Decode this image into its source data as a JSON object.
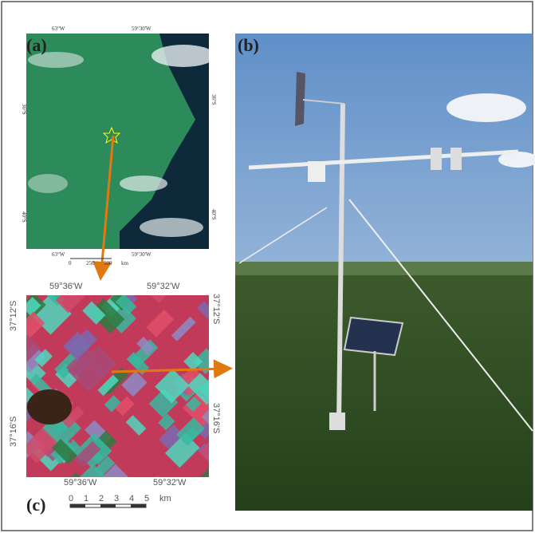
{
  "panels": {
    "a": {
      "label": "(a)",
      "top_ticks": [
        "63°W",
        "59°30'W"
      ],
      "bottom_ticks": [
        "63°W",
        "59°30'W"
      ],
      "left_ticks": [
        "36°S",
        "40°S"
      ],
      "right_ticks": [
        "36°S",
        "40°S"
      ],
      "scale": [
        "0",
        "250",
        "500",
        "km"
      ]
    },
    "b": {
      "label": "(b)"
    },
    "c": {
      "label": "(c)",
      "top_ticks": [
        "59°36'W",
        "59°32'W"
      ],
      "bottom_ticks": [
        "59°36'W",
        "59°32'W"
      ],
      "left_ticks": [
        "37°12'S",
        "37°16'S"
      ],
      "right_ticks": [
        "37°12'S",
        "37°16'S"
      ],
      "scale": [
        "0",
        "1",
        "2",
        "3",
        "4",
        "5",
        "km"
      ]
    }
  }
}
